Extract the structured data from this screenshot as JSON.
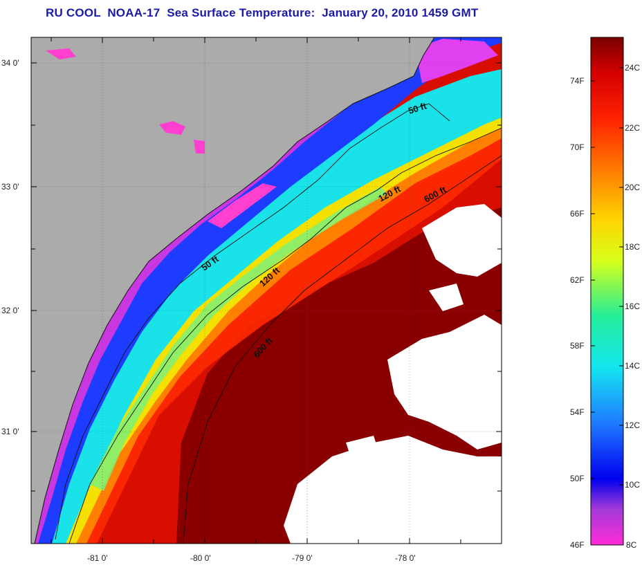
{
  "title": "RU COOL  NOAA-17  Sea Surface Temperature:  January 20, 2010 1459 GMT",
  "map": {
    "lon_ticks": [
      "-81 0'",
      "-80 0'",
      "-79 0'",
      "-78 0'"
    ],
    "lat_ticks": [
      "34 0'",
      "33 0'",
      "32 0'",
      "31 0'"
    ],
    "contour_labels": [
      "50 ft",
      "120 ft",
      "600 ft",
      "50 ft",
      "120 ft",
      "600 ft"
    ],
    "colors": {
      "land": "#ababab",
      "cloud": "#ffffff",
      "contour": "#111111"
    }
  },
  "colorbar": {
    "fahrenheit_labels": [
      "74F",
      "70F",
      "66F",
      "62F",
      "58F",
      "54F",
      "50F",
      "46F"
    ],
    "celsius_labels": [
      "24C",
      "22C",
      "20C",
      "18C",
      "16C",
      "14C",
      "12C",
      "10C",
      "8C"
    ],
    "gradient": [
      "#ff2bd6",
      "#a43ad8",
      "#0000ee",
      "#1f7bff",
      "#13e6f0",
      "#24ee9a",
      "#d6ff1a",
      "#ffd500",
      "#ff7a00",
      "#ff2200",
      "#d40000",
      "#7a0000"
    ]
  }
}
